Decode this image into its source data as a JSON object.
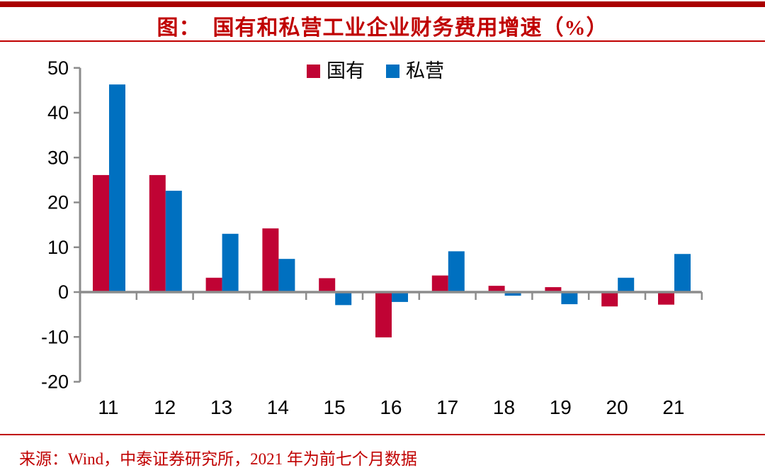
{
  "page": {
    "title": "图：  国有和私营工业企业财务费用增速（%）",
    "source_note": "来源：Wind，中泰证券研究所，2021 年为前七个月数据"
  },
  "colors": {
    "top_bar_red": "#AA0000",
    "accent_red": "#C00000",
    "axis_gray": "#8C8C8C",
    "label_black": "#000000",
    "bar_red": "#C00334",
    "bar_blue": "#0070C0"
  },
  "chart_data": {
    "type": "bar",
    "title": "图：  国有和私营工业企业财务费用增速（%）",
    "xlabel": "",
    "ylabel": "",
    "categories": [
      "11",
      "12",
      "13",
      "14",
      "15",
      "16",
      "17",
      "18",
      "19",
      "20",
      "21"
    ],
    "series": [
      {
        "name": "国有",
        "color": "#C00334",
        "values": [
          26.1,
          26.1,
          3.2,
          14.2,
          3.1,
          -10.1,
          3.7,
          1.4,
          1.1,
          -3.2,
          -2.8
        ]
      },
      {
        "name": "私营",
        "color": "#0070C0",
        "values": [
          46.3,
          22.6,
          13.0,
          7.4,
          -2.9,
          -2.2,
          9.1,
          -0.8,
          -2.7,
          3.2,
          8.5
        ]
      }
    ],
    "ylim": [
      -20,
      50
    ],
    "yticks": [
      50,
      40,
      30,
      20,
      10,
      0,
      -10,
      -20
    ],
    "grid": false,
    "legend_position": "top-center"
  }
}
